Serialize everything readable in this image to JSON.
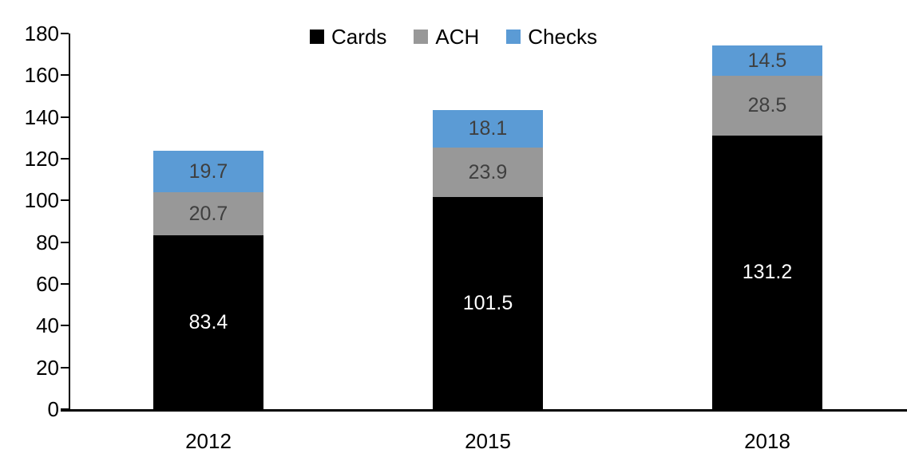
{
  "chart_data": {
    "type": "bar",
    "stacked": true,
    "title": "",
    "xlabel": "",
    "ylabel": "",
    "categories": [
      "2012",
      "2015",
      "2018"
    ],
    "series": [
      {
        "name": "Cards",
        "color": "#000000",
        "label_color": "#ffffff",
        "values": [
          83.4,
          101.5,
          131.2
        ]
      },
      {
        "name": "ACH",
        "color": "#989898",
        "label_color": "#3f3f3f",
        "values": [
          20.7,
          23.9,
          28.5
        ]
      },
      {
        "name": "Checks",
        "color": "#5b9bd5",
        "label_color": "#3f3f3f",
        "values": [
          19.7,
          18.1,
          14.5
        ]
      }
    ],
    "totals": [
      123.8,
      143.5,
      174.2
    ],
    "ylim": [
      0,
      180
    ],
    "ytick_step": 20,
    "yticks": [
      0,
      20,
      40,
      60,
      80,
      100,
      120,
      140,
      160,
      180
    ],
    "legend_position": "top",
    "legend_entries": [
      "Cards",
      "ACH",
      "Checks"
    ],
    "grid": false,
    "axis_color": "#000000"
  }
}
